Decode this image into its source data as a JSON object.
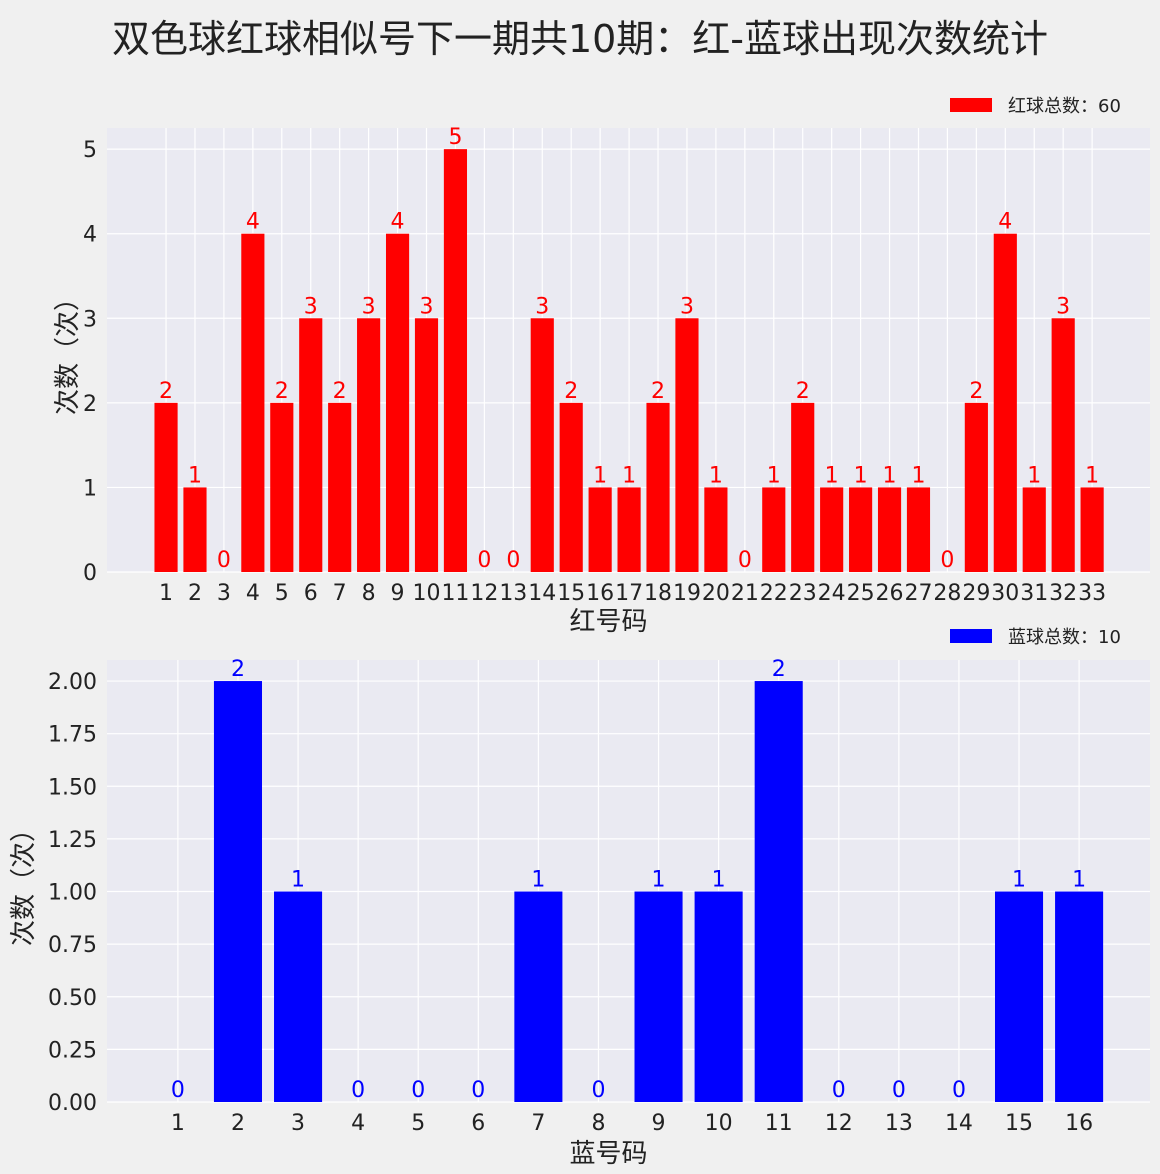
{
  "title": "双色球红球相似号下一期共10期：红-蓝球出现次数统计",
  "chart_data": [
    {
      "type": "bar",
      "color": "#ff0000",
      "xlabel": "红号码",
      "ylabel": "次数（次）",
      "legend": "红球总数：60",
      "legend_placement": "top-right",
      "grid": true,
      "categories": [
        "1",
        "2",
        "3",
        "4",
        "5",
        "6",
        "7",
        "8",
        "9",
        "10",
        "11",
        "12",
        "13",
        "14",
        "15",
        "16",
        "17",
        "18",
        "19",
        "20",
        "21",
        "22",
        "23",
        "24",
        "25",
        "26",
        "27",
        "28",
        "29",
        "30",
        "31",
        "32",
        "33"
      ],
      "values": [
        2,
        1,
        0,
        4,
        2,
        3,
        2,
        3,
        4,
        3,
        5,
        0,
        0,
        3,
        2,
        1,
        1,
        2,
        3,
        1,
        0,
        1,
        2,
        1,
        1,
        1,
        1,
        0,
        2,
        4,
        1,
        3,
        1
      ],
      "yticks": [
        "0",
        "1",
        "2",
        "3",
        "4",
        "5"
      ],
      "ytick_values": [
        0,
        1,
        2,
        3,
        4,
        5
      ],
      "ylim": [
        0,
        5.25
      ],
      "xlim": [
        -1.04,
        35
      ]
    },
    {
      "type": "bar",
      "color": "#0000ff",
      "xlabel": "蓝号码",
      "ylabel": "次数（次）",
      "legend": "蓝球总数：10",
      "legend_placement": "top-right",
      "grid": true,
      "categories": [
        "1",
        "2",
        "3",
        "4",
        "5",
        "6",
        "7",
        "8",
        "9",
        "10",
        "11",
        "12",
        "13",
        "14",
        "15",
        "16"
      ],
      "values": [
        0,
        2,
        1,
        0,
        0,
        0,
        1,
        0,
        1,
        1,
        2,
        0,
        0,
        0,
        1,
        1
      ],
      "yticks": [
        "0.00",
        "0.25",
        "0.50",
        "0.75",
        "1.00",
        "1.25",
        "1.50",
        "1.75",
        "2.00"
      ],
      "ytick_values": [
        0,
        0.25,
        0.5,
        0.75,
        1,
        1.25,
        1.5,
        1.75,
        2
      ],
      "ylim": [
        0,
        2.1
      ],
      "xlim": [
        -0.18,
        17.18
      ]
    }
  ]
}
